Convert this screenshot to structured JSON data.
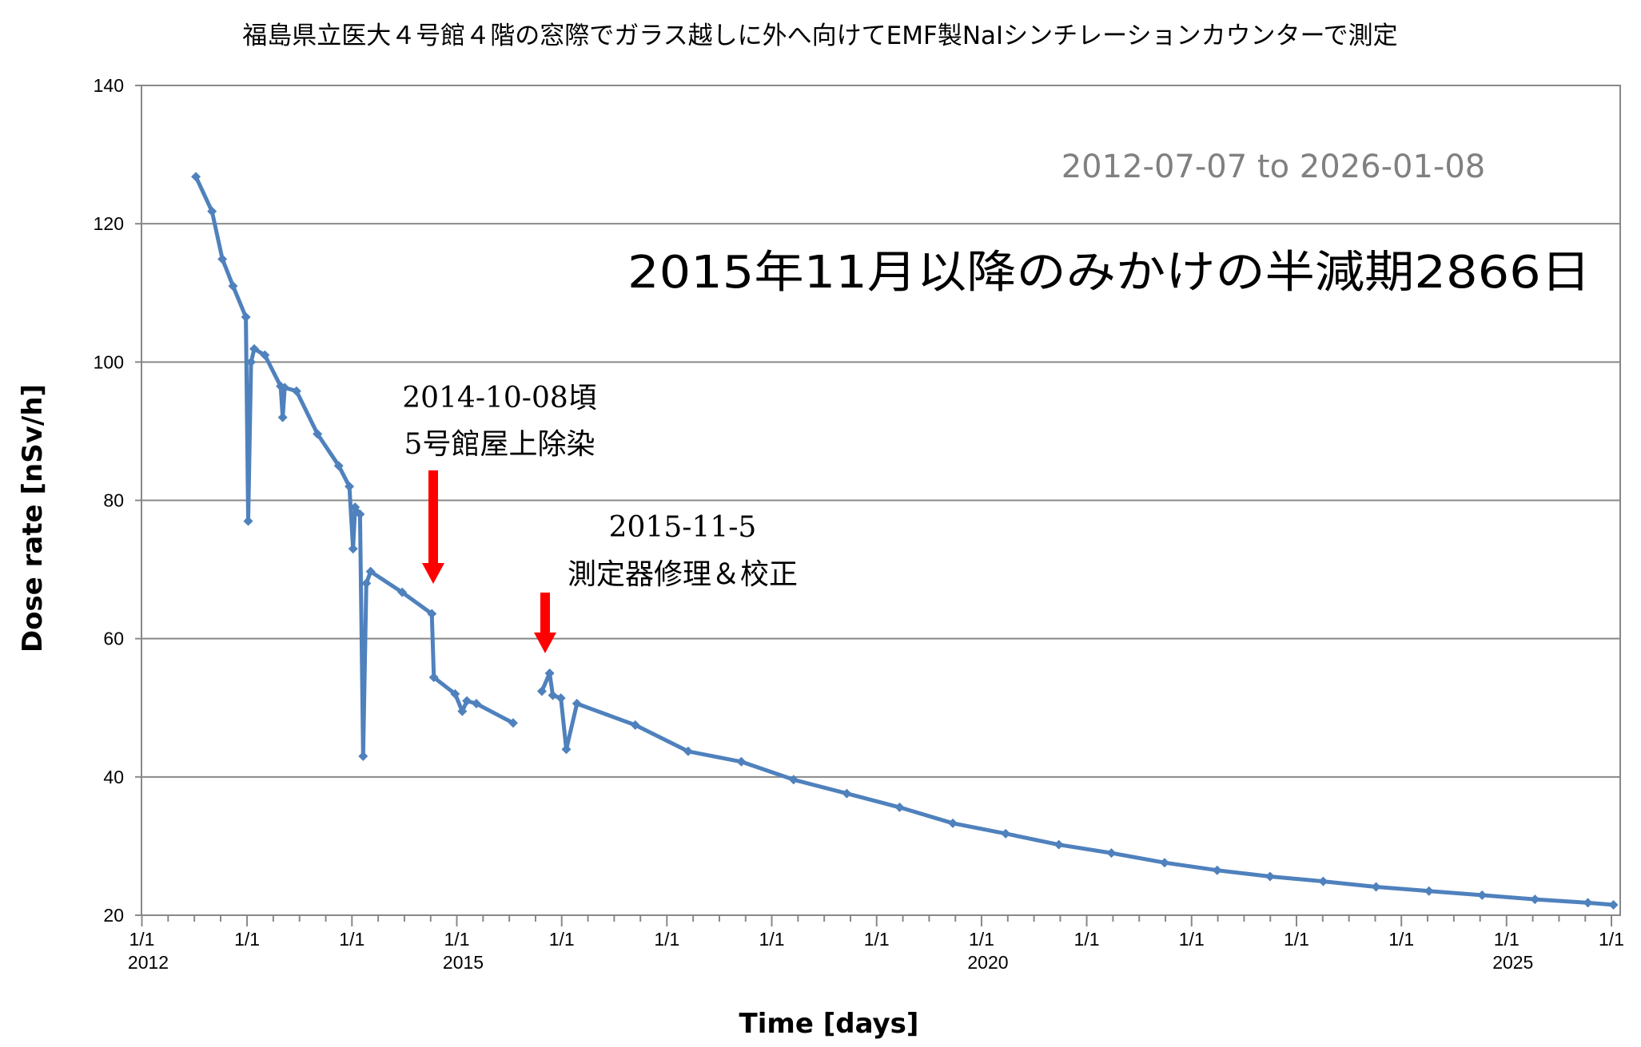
{
  "chart_data": {
    "type": "line",
    "title": "福島県立医大４号館４階の窓際でガラス越しに外へ向けてEMF製NaIシンチレーションカウンターで測定",
    "xlabel": "Time [days]",
    "ylabel": "Dose rate [nSv/h]",
    "ylim": [
      20,
      140
    ],
    "yticks": [
      20,
      40,
      60,
      80,
      100,
      120,
      140
    ],
    "xlim": [
      "2012-01-01",
      "2026-01-31"
    ],
    "xticks": [
      {
        "date": "2012-01-01",
        "label": "1/1",
        "year": "2012"
      },
      {
        "date": "2013-01-01",
        "label": "1/1",
        "year": ""
      },
      {
        "date": "2014-01-01",
        "label": "1/1",
        "year": ""
      },
      {
        "date": "2015-01-01",
        "label": "1/1",
        "year": "2015"
      },
      {
        "date": "2016-01-01",
        "label": "1/1",
        "year": ""
      },
      {
        "date": "2017-01-01",
        "label": "1/1",
        "year": ""
      },
      {
        "date": "2018-01-01",
        "label": "1/1",
        "year": ""
      },
      {
        "date": "2019-01-01",
        "label": "1/1",
        "year": ""
      },
      {
        "date": "2020-01-01",
        "label": "1/1",
        "year": "2020"
      },
      {
        "date": "2021-01-01",
        "label": "1/1",
        "year": ""
      },
      {
        "date": "2022-01-01",
        "label": "1/1",
        "year": ""
      },
      {
        "date": "2023-01-01",
        "label": "1/1",
        "year": ""
      },
      {
        "date": "2024-01-01",
        "label": "1/1",
        "year": ""
      },
      {
        "date": "2025-01-01",
        "label": "1/1",
        "year": "2025"
      },
      {
        "date": "2026-01-01",
        "label": "1/1",
        "year": ""
      }
    ],
    "grid": true,
    "series_color": "#4f81bd",
    "annotation_color": "#ff0000",
    "segments": [
      [
        [
          "2012-07-07",
          126.8
        ],
        [
          "2012-09-01",
          121.8
        ],
        [
          "2012-10-07",
          114.9
        ],
        [
          "2012-11-13",
          111.0
        ],
        [
          "2012-12-28",
          106.5
        ],
        [
          "2013-01-05",
          77.0
        ],
        [
          "2013-01-15",
          100.0
        ],
        [
          "2013-01-26",
          101.9
        ],
        [
          "2013-03-04",
          101.0
        ],
        [
          "2013-04-28",
          96.5
        ],
        [
          "2013-05-05",
          92.0
        ],
        [
          "2013-05-12",
          96.3
        ],
        [
          "2013-06-22",
          95.8
        ],
        [
          "2013-09-03",
          89.6
        ],
        [
          "2013-11-16",
          85.0
        ],
        [
          "2013-12-23",
          82.0
        ],
        [
          "2014-01-05",
          73.0
        ],
        [
          "2014-01-12",
          79.0
        ],
        [
          "2014-01-29",
          78.0
        ],
        [
          "2014-02-09",
          43.0
        ],
        [
          "2014-02-20",
          68.0
        ],
        [
          "2014-03-07",
          69.7
        ],
        [
          "2014-06-25",
          66.7
        ],
        [
          "2014-10-06",
          63.6
        ],
        [
          "2014-10-13",
          54.4
        ],
        [
          "2014-12-26",
          52.0
        ],
        [
          "2015-01-20",
          49.5
        ],
        [
          "2015-02-05",
          51.0
        ],
        [
          "2015-03-10",
          50.6
        ],
        [
          "2015-07-16",
          47.8
        ]
      ],
      [
        [
          "2015-10-24",
          52.4
        ],
        [
          "2015-11-20",
          55.0
        ],
        [
          "2015-12-01",
          51.8
        ],
        [
          "2015-12-29",
          51.4
        ],
        [
          "2016-01-17",
          44.0
        ],
        [
          "2016-02-23",
          50.6
        ],
        [
          "2016-09-13",
          47.5
        ],
        [
          "2017-03-16",
          43.7
        ],
        [
          "2017-09-17",
          42.2
        ],
        [
          "2018-03-18",
          39.6
        ],
        [
          "2018-09-19",
          37.6
        ],
        [
          "2019-03-22",
          35.6
        ],
        [
          "2019-09-23",
          33.3
        ],
        [
          "2020-03-25",
          31.8
        ],
        [
          "2020-09-26",
          30.2
        ],
        [
          "2021-03-28",
          29.0
        ],
        [
          "2021-09-29",
          27.6
        ],
        [
          "2022-03-31",
          26.5
        ],
        [
          "2022-10-01",
          25.6
        ],
        [
          "2023-04-04",
          24.9
        ],
        [
          "2023-10-05",
          24.1
        ],
        [
          "2024-04-06",
          23.5
        ],
        [
          "2024-10-08",
          22.9
        ],
        [
          "2025-04-10",
          22.3
        ],
        [
          "2025-10-11",
          21.8
        ],
        [
          "2026-01-08",
          21.5
        ]
      ]
    ],
    "annotations": {
      "range": "2012-07-07 to 2026-01-08",
      "halflife": "2015年11月以降のみかけの半減期2866日",
      "event1_date": "2014-10-08頃",
      "event1_text": "5号館屋上除染",
      "event2_date": "2015-11-5",
      "event2_text": "測定器修理＆校正"
    }
  }
}
